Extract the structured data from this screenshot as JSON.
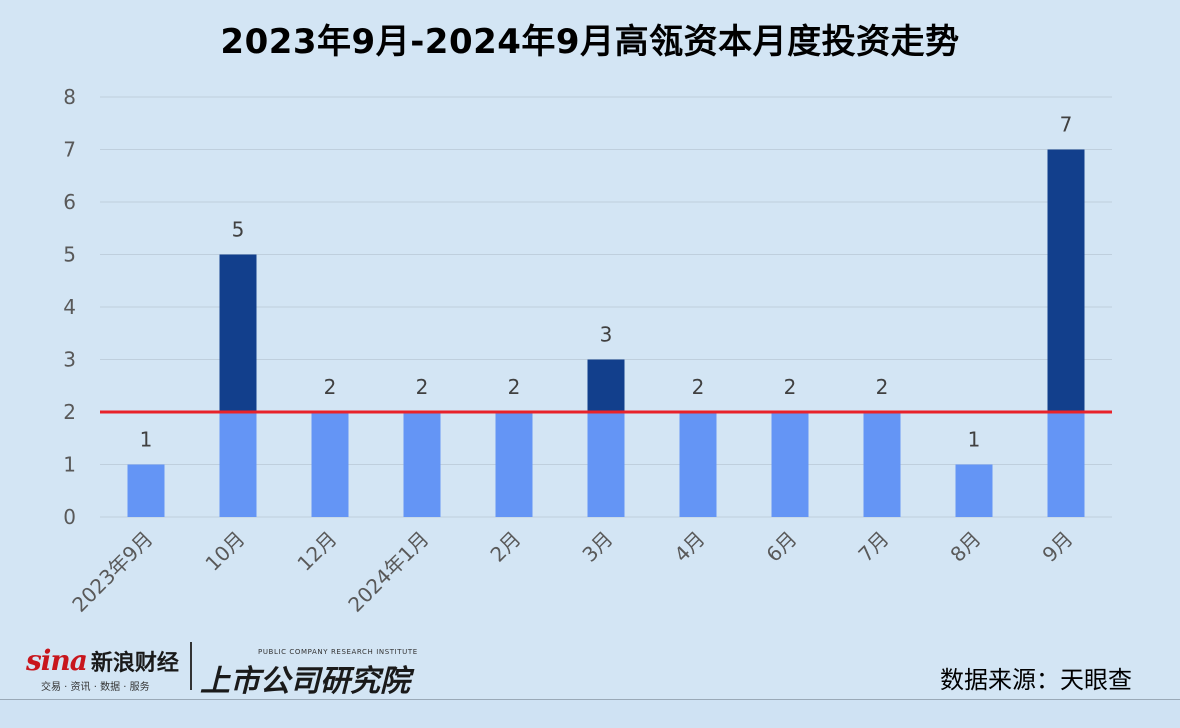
{
  "chart_data": {
    "type": "bar",
    "title": "2023年9月-2024年9月高瓴资本月度投资走势",
    "categories": [
      "2023年9月",
      "10月",
      "12月",
      "2024年1月",
      "2月",
      "3月",
      "4月",
      "6月",
      "7月",
      "8月",
      "9月"
    ],
    "values": [
      1,
      5,
      2,
      2,
      2,
      3,
      2,
      2,
      2,
      1,
      7
    ],
    "data_labels": [
      "1",
      "5",
      "2",
      "2",
      "2",
      "3",
      "2",
      "2",
      "2",
      "1",
      "7"
    ],
    "ylim": [
      0,
      8
    ],
    "yticks": [
      0,
      1,
      2,
      3,
      4,
      5,
      6,
      7,
      8
    ],
    "ytick_labels": [
      "0",
      "1",
      "2",
      "3",
      "4",
      "5",
      "6",
      "7",
      "8"
    ],
    "reference_line": 2,
    "xlabel": "",
    "ylabel": "",
    "grid": true,
    "colors": {
      "base_bar": "#6495f5",
      "above_reference": "#123f8c",
      "reference_line": "#e8222a",
      "grid": "#bfcfdd",
      "background": "#d3e5f4"
    }
  },
  "footer": {
    "sina_logo": "sina",
    "sina_name": "新浪财经",
    "sina_sub": "交易 · 资讯 · 数据 · 服务",
    "institute_en": "PUBLIC COMPANY RESEARCH INSTITUTE",
    "institute_cn": "上市公司研究院",
    "source": "数据来源：天眼查"
  }
}
